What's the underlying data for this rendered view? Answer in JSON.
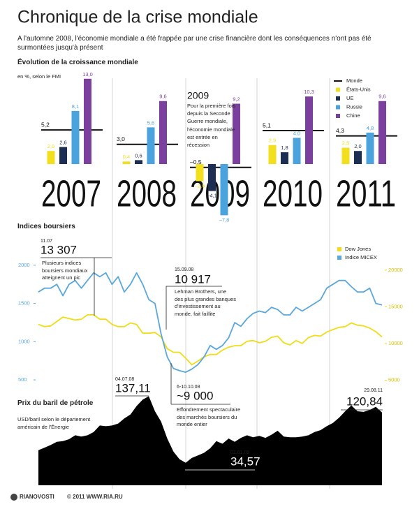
{
  "header": {
    "title": "Chronique de la crise mondiale",
    "subtitle": "A l'automne 2008, l'économie mondiale a été frappée par une crise financière dont les conséquences n'ont pas été surmontées jusqu'à présent"
  },
  "chart_data": [
    {
      "type": "bar",
      "title": "Évolution de la croissance mondiale",
      "subtitle": "en %, selon le FMI",
      "categories": [
        "2007",
        "2008",
        "2009",
        "2010",
        "2011"
      ],
      "series": [
        {
          "name": "Monde",
          "color": "#111111",
          "style": "line",
          "values": [
            5.2,
            3.0,
            -0.5,
            5.1,
            4.3
          ],
          "value_labels": [
            "5,2",
            "3,0",
            "–0,5",
            "5,1",
            "4,3"
          ]
        },
        {
          "name": "États-Unis",
          "color": "#f2e01e",
          "values": [
            2.0,
            0.4,
            -2.6,
            2.9,
            2.5
          ],
          "value_labels": [
            "2,0",
            "0,4",
            "–2,6",
            "2,9",
            "2,5"
          ]
        },
        {
          "name": "UE",
          "color": "#1c2e52",
          "values": [
            2.6,
            0.6,
            -4.1,
            1.8,
            2.0
          ],
          "value_labels": [
            "2,6",
            "0,6",
            "–4,1",
            "1,8",
            "2,0"
          ]
        },
        {
          "name": "Russie",
          "color": "#4ba3dd",
          "values": [
            8.1,
            5.6,
            -7.8,
            4.0,
            4.8
          ],
          "value_labels": [
            "8,1",
            "5,6",
            "–7,8",
            "4,0",
            "4,8"
          ]
        },
        {
          "name": "Chine",
          "color": "#7b3f9e",
          "values": [
            13.0,
            9.6,
            9.2,
            10.3,
            9.6
          ],
          "value_labels": [
            "13,0",
            "9,6",
            "9,2",
            "10,3",
            "9,6"
          ]
        }
      ],
      "annotation": {
        "title": "2009",
        "text": "Pour la première fois depuis la Seconde Guerre mondiale, l'économie mondiale est entrée en récession"
      }
    },
    {
      "type": "line",
      "title": "Indices boursiers",
      "series": [
        {
          "name": "Dow Jones",
          "color": "#f0dc18",
          "axis": "y2",
          "values": [
            12600,
            12300,
            12400,
            13000,
            13600,
            13400,
            13200,
            13300,
            13900,
            13900,
            13300,
            13300,
            12600,
            12300,
            12300,
            12800,
            12600,
            11400,
            11400,
            11500,
            10900,
            9300,
            8800,
            8800,
            8000,
            7100,
            7600,
            8200,
            8500,
            8500,
            9100,
            9500,
            9700,
            9700,
            10300,
            10400,
            10100,
            10300,
            10850,
            11000,
            10100,
            9800,
            10400,
            10000,
            10800,
            11100,
            11000,
            11550,
            11900,
            12200,
            12300,
            12800,
            12500,
            12400,
            12100,
            11600,
            10900
          ]
        },
        {
          "name": "Indice MICEX",
          "color": "#5aa7dc",
          "values": [
            1650,
            1700,
            1700,
            1750,
            1600,
            1750,
            1800,
            1700,
            1800,
            1900,
            1850,
            1900,
            1750,
            1850,
            1650,
            1750,
            1900,
            1750,
            1550,
            1500,
            1100,
            800,
            650,
            620,
            600,
            640,
            700,
            800,
            950,
            900,
            950,
            1050,
            1250,
            1200,
            1300,
            1370,
            1400,
            1380,
            1450,
            1420,
            1350,
            1350,
            1450,
            1400,
            1450,
            1500,
            1550,
            1700,
            1750,
            1800,
            1800,
            1720,
            1650,
            1650,
            1700,
            1500,
            1480
          ]
        }
      ],
      "ylim": [
        400,
        2090
      ],
      "yticks": [
        500,
        1000,
        1500,
        2000
      ],
      "y2lim": [
        4000,
        21600
      ],
      "y2ticks": [
        5000,
        10000,
        15000,
        20000
      ],
      "annotations": [
        {
          "date": "11.07",
          "value": "13 307",
          "text": "Plusieurs indices boursiers mondiaux atteignent un pic"
        },
        {
          "date": "15.09.08",
          "value": "10 917",
          "text": "Lehman Brothers, une des plus grandes banques d'investissement au monde, fait faillite"
        },
        {
          "date": "6-10.10.08",
          "value": "~9 000",
          "text": "Effondrement spectaculaire des marchés boursiers du monde entier"
        }
      ]
    },
    {
      "type": "area",
      "title": "Prix du baril de pétrole",
      "subtitle": "USD/baril selon le département américain de l'Énergie",
      "color": "#000000",
      "values": [
        54,
        58,
        62,
        67,
        68,
        71,
        77,
        75,
        77,
        82,
        92,
        91,
        92,
        95,
        103,
        109,
        122,
        132,
        137.11,
        114,
        98,
        72,
        52,
        40,
        34.57,
        42,
        46,
        50,
        57,
        68,
        64,
        72,
        67,
        73,
        77,
        74,
        76,
        73,
        78,
        84,
        75,
        74,
        74,
        75,
        77,
        82,
        85,
        91,
        96,
        104,
        114,
        123,
        114,
        113,
        116,
        120.84,
        112
      ],
      "annotations": [
        {
          "date": "04.07.08",
          "value": "137,11"
        },
        {
          "date": "02.01.09",
          "value": "34,57"
        },
        {
          "date": "29.08.11",
          "value": "120,84"
        }
      ]
    }
  ],
  "footer": {
    "logo": "RIANOVOSTI",
    "copyright": "© 2011 WWW.RIA.RU"
  }
}
